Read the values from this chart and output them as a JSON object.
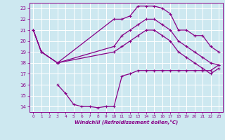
{
  "background_color": "#cde8f0",
  "grid_color": "#ffffff",
  "line_color": "#880088",
  "xlabel": "Windchill (Refroidissement éolien,°C)",
  "xlim": [
    -0.5,
    23.5
  ],
  "ylim": [
    13.5,
    23.5
  ],
  "xticks": [
    0,
    1,
    2,
    3,
    4,
    5,
    6,
    7,
    8,
    9,
    10,
    11,
    12,
    13,
    14,
    15,
    16,
    17,
    18,
    19,
    20,
    21,
    22,
    23
  ],
  "yticks": [
    14,
    15,
    16,
    17,
    18,
    19,
    20,
    21,
    22,
    23
  ],
  "curve1_x": [
    0,
    1,
    3,
    10,
    11,
    12,
    13,
    14,
    15,
    16,
    17,
    18,
    19,
    20,
    21,
    22,
    23
  ],
  "curve1_y": [
    21,
    19,
    18,
    22,
    22,
    22.3,
    23.2,
    23.2,
    23.2,
    23.0,
    22.5,
    21,
    21,
    20.5,
    20.5,
    19.5,
    19
  ],
  "curve2_x": [
    0,
    1,
    3,
    10,
    11,
    12,
    13,
    14,
    15,
    16,
    17,
    18,
    19,
    20,
    21,
    22,
    23
  ],
  "curve2_y": [
    21,
    19,
    18,
    19.5,
    20.5,
    21,
    21.5,
    22,
    22,
    21.5,
    21,
    20,
    19.5,
    19,
    18.5,
    18,
    17.8
  ],
  "curve3_x": [
    0,
    1,
    3,
    10,
    11,
    12,
    13,
    14,
    15,
    16,
    17,
    18,
    19,
    20,
    21,
    22,
    23
  ],
  "curve3_y": [
    21,
    19,
    18,
    19,
    19.5,
    20,
    20.5,
    21,
    21,
    20.5,
    20,
    19,
    18.5,
    18,
    17.5,
    17,
    17.5
  ],
  "curve4_x": [
    3,
    4,
    5,
    6,
    7,
    8,
    9,
    10,
    11,
    12,
    13,
    14,
    15,
    16,
    17,
    18,
    19,
    20,
    21,
    22,
    23
  ],
  "curve4_y": [
    16,
    15.2,
    14.2,
    14,
    14,
    13.9,
    14,
    14,
    16.8,
    17,
    17.3,
    17.3,
    17.3,
    17.3,
    17.3,
    17.3,
    17.3,
    17.3,
    17.3,
    17.3,
    17.8
  ]
}
